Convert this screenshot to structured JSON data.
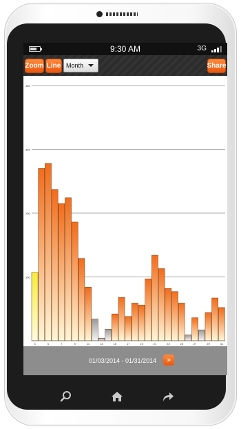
{
  "status_bar": {
    "time": "9:30 AM",
    "network": "3G"
  },
  "toolbar": {
    "zoom_label": "Zoom",
    "line_label": "Line",
    "period_selected": "Month",
    "share_label": "Share"
  },
  "footer": {
    "date_range": "01/03/2014 - 01/31/2014",
    "next_label": ">"
  },
  "nav_icons": [
    "search-icon",
    "home-icon",
    "forward-icon"
  ],
  "colors": {
    "accent": "#f26c1b",
    "bar_top": "#f26c1b",
    "bar_bottom": "#fff6d8",
    "bar_highlight": "#f7ec3a",
    "bar_low": "#9a9a9a"
  },
  "chart_data": {
    "type": "bar",
    "ylim": [
      0,
      400
    ],
    "yticks": [
      "400",
      "300",
      "200",
      "100"
    ],
    "xticks": [
      "3",
      "5",
      "7",
      "9",
      "11",
      "13",
      "15",
      "17",
      "19",
      "21",
      "23",
      "25",
      "27",
      "29",
      "31"
    ],
    "values": [
      107,
      270,
      278,
      237,
      215,
      224,
      186,
      129,
      84,
      34,
      4,
      18,
      42,
      68,
      38,
      59,
      56,
      97,
      134,
      113,
      82,
      77,
      59,
      9,
      36,
      17,
      44,
      67,
      52
    ],
    "highlight_index": 0,
    "low_indices": [
      9,
      10,
      11,
      23,
      25
    ]
  }
}
